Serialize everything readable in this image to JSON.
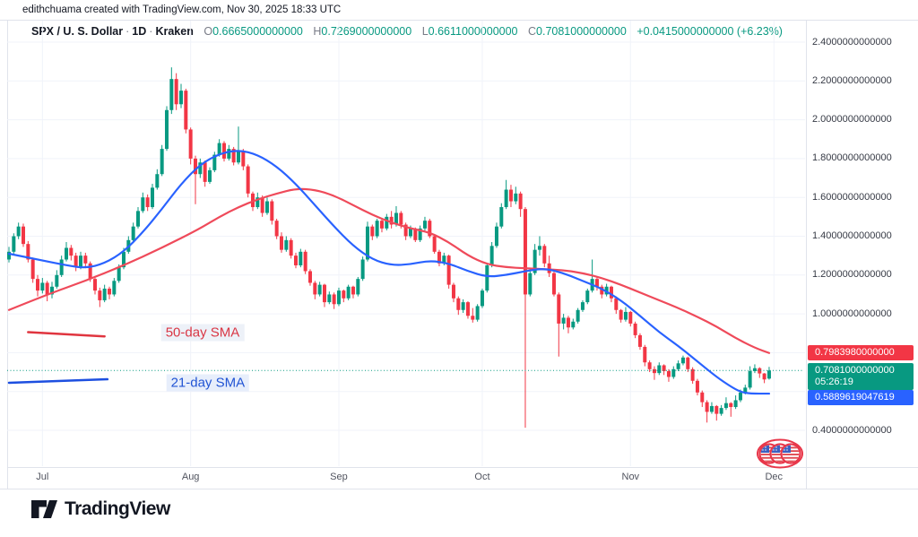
{
  "attribution": {
    "text": "edithchuama created with TradingView.com, Nov 30, 2025 18:33 UTC"
  },
  "header": {
    "title": "SPX / U. S. Dollar",
    "separator": "·",
    "timeframe": "1D",
    "exchange": "Kraken",
    "ohlc": [
      {
        "k": "O",
        "v": "0.6665000000000"
      },
      {
        "k": "H",
        "v": "0.7269000000000"
      },
      {
        "k": "L",
        "v": "0.6611000000000"
      },
      {
        "k": "C",
        "v": "0.7081000000000"
      }
    ],
    "change": "+0.0415000000000 (+6.23%)"
  },
  "price_tags": {
    "sma50": {
      "value": "0.7983980000000",
      "color": "#f23645",
      "price": 0.798398
    },
    "last": {
      "value": "0.7081000000000",
      "countdown": "05:26:19",
      "color": "#089981",
      "price": 0.7081
    },
    "sma21": {
      "value": "0.5889619047619",
      "color": "#2962ff",
      "price": 0.5889619047619
    }
  },
  "footer": {
    "brand": "TradingView"
  },
  "icons": {
    "annotation": "us-flag-circles-icon"
  },
  "chart_data": {
    "type": "candlestick",
    "title": "SPX / U.S. Dollar 1D Kraken",
    "ylim": [
      0.4,
      2.4
    ],
    "grid": true,
    "grid_prices": [
      0.4,
      0.6,
      0.8,
      1.0,
      1.2,
      1.4,
      1.6,
      1.8,
      2.0,
      2.2,
      2.4
    ],
    "price_ticks": [
      {
        "price": 2.4,
        "label": "2.4000000000000"
      },
      {
        "price": 2.2,
        "label": "2.2000000000000"
      },
      {
        "price": 2.0,
        "label": "2.0000000000000"
      },
      {
        "price": 1.8,
        "label": "1.8000000000000"
      },
      {
        "price": 1.6,
        "label": "1.6000000000000"
      },
      {
        "price": 1.4,
        "label": "1.4000000000000"
      },
      {
        "price": 1.2,
        "label": "1.2000000000000"
      },
      {
        "price": 1.0,
        "label": "1.0000000000000"
      },
      {
        "price": 0.4,
        "label": "0.4000000000000"
      }
    ],
    "months": [
      {
        "label": "Jul",
        "index": 7
      },
      {
        "label": "Aug",
        "index": 38
      },
      {
        "label": "Sep",
        "index": 69
      },
      {
        "label": "Oct",
        "index": 99
      },
      {
        "label": "Nov",
        "index": 130
      },
      {
        "label": "Dec",
        "index": 160
      }
    ],
    "colors": {
      "up": "#089981",
      "down": "#f23645"
    },
    "last_price_line": {
      "price": 0.7081,
      "color": "#089981",
      "style": "dotted"
    },
    "candles": [
      [
        1.28,
        1.345,
        1.265,
        1.32
      ],
      [
        1.32,
        1.415,
        1.31,
        1.4
      ],
      [
        1.4,
        1.47,
        1.385,
        1.45
      ],
      [
        1.45,
        1.465,
        1.345,
        1.36
      ],
      [
        1.36,
        1.375,
        1.265,
        1.28
      ],
      [
        1.28,
        1.29,
        1.16,
        1.18
      ],
      [
        1.18,
        1.2,
        1.09,
        1.12
      ],
      [
        1.12,
        1.185,
        1.105,
        1.16
      ],
      [
        1.16,
        1.17,
        1.065,
        1.1
      ],
      [
        1.1,
        1.165,
        1.08,
        1.14
      ],
      [
        1.14,
        1.225,
        1.13,
        1.2
      ],
      [
        1.2,
        1.3,
        1.19,
        1.28
      ],
      [
        1.28,
        1.37,
        1.27,
        1.34
      ],
      [
        1.34,
        1.355,
        1.275,
        1.3
      ],
      [
        1.3,
        1.315,
        1.22,
        1.24
      ],
      [
        1.24,
        1.32,
        1.23,
        1.3
      ],
      [
        1.3,
        1.315,
        1.235,
        1.26
      ],
      [
        1.26,
        1.27,
        1.165,
        1.18
      ],
      [
        1.18,
        1.195,
        1.1,
        1.12
      ],
      [
        1.12,
        1.135,
        1.035,
        1.07
      ],
      [
        1.07,
        1.15,
        1.06,
        1.13
      ],
      [
        1.13,
        1.14,
        1.075,
        1.1
      ],
      [
        1.1,
        1.185,
        1.09,
        1.17
      ],
      [
        1.17,
        1.255,
        1.16,
        1.24
      ],
      [
        1.24,
        1.34,
        1.23,
        1.32
      ],
      [
        1.32,
        1.4,
        1.31,
        1.38
      ],
      [
        1.38,
        1.47,
        1.37,
        1.45
      ],
      [
        1.45,
        1.55,
        1.44,
        1.53
      ],
      [
        1.53,
        1.625,
        1.52,
        1.6
      ],
      [
        1.6,
        1.615,
        1.53,
        1.55
      ],
      [
        1.55,
        1.67,
        1.54,
        1.65
      ],
      [
        1.65,
        1.745,
        1.64,
        1.72
      ],
      [
        1.72,
        1.87,
        1.71,
        1.85
      ],
      [
        1.85,
        2.07,
        1.84,
        2.05
      ],
      [
        2.05,
        2.27,
        2.03,
        2.21
      ],
      [
        2.21,
        2.24,
        2.05,
        2.08
      ],
      [
        2.08,
        2.185,
        2.06,
        2.15
      ],
      [
        2.15,
        2.16,
        1.93,
        1.95
      ],
      [
        1.95,
        1.96,
        1.77,
        1.8
      ],
      [
        1.8,
        1.815,
        1.565,
        1.72
      ],
      [
        1.72,
        1.8,
        1.7,
        1.78
      ],
      [
        1.78,
        1.79,
        1.655,
        1.68
      ],
      [
        1.68,
        1.755,
        1.67,
        1.74
      ],
      [
        1.74,
        1.835,
        1.73,
        1.82
      ],
      [
        1.82,
        1.9,
        1.81,
        1.88
      ],
      [
        1.88,
        1.89,
        1.785,
        1.8
      ],
      [
        1.8,
        1.87,
        1.79,
        1.85
      ],
      [
        1.85,
        1.86,
        1.765,
        1.78
      ],
      [
        1.78,
        1.965,
        1.77,
        1.84
      ],
      [
        1.84,
        1.85,
        1.74,
        1.76
      ],
      [
        1.76,
        1.77,
        1.6,
        1.62
      ],
      [
        1.62,
        1.63,
        1.53,
        1.55
      ],
      [
        1.55,
        1.625,
        1.54,
        1.6
      ],
      [
        1.6,
        1.61,
        1.5,
        1.52
      ],
      [
        1.52,
        1.6,
        1.51,
        1.58
      ],
      [
        1.58,
        1.59,
        1.46,
        1.48
      ],
      [
        1.48,
        1.49,
        1.385,
        1.4
      ],
      [
        1.4,
        1.42,
        1.315,
        1.33
      ],
      [
        1.33,
        1.4,
        1.32,
        1.38
      ],
      [
        1.38,
        1.39,
        1.285,
        1.3
      ],
      [
        1.3,
        1.315,
        1.235,
        1.25
      ],
      [
        1.25,
        1.335,
        1.24,
        1.32
      ],
      [
        1.32,
        1.33,
        1.205,
        1.22
      ],
      [
        1.22,
        1.23,
        1.145,
        1.16
      ],
      [
        1.16,
        1.17,
        1.075,
        1.1
      ],
      [
        1.1,
        1.165,
        1.09,
        1.15
      ],
      [
        1.15,
        1.155,
        1.035,
        1.06
      ],
      [
        1.06,
        1.115,
        1.05,
        1.1
      ],
      [
        1.1,
        1.11,
        1.025,
        1.05
      ],
      [
        1.05,
        1.135,
        1.04,
        1.12
      ],
      [
        1.12,
        1.125,
        1.06,
        1.08
      ],
      [
        1.08,
        1.15,
        1.07,
        1.14
      ],
      [
        1.14,
        1.145,
        1.08,
        1.1
      ],
      [
        1.1,
        1.19,
        1.09,
        1.18
      ],
      [
        1.18,
        1.295,
        1.17,
        1.28
      ],
      [
        1.28,
        1.475,
        1.27,
        1.45
      ],
      [
        1.45,
        1.46,
        1.38,
        1.4
      ],
      [
        1.4,
        1.49,
        1.39,
        1.48
      ],
      [
        1.48,
        1.495,
        1.42,
        1.44
      ],
      [
        1.44,
        1.515,
        1.43,
        1.5
      ],
      [
        1.5,
        1.53,
        1.44,
        1.46
      ],
      [
        1.46,
        1.555,
        1.45,
        1.52
      ],
      [
        1.52,
        1.53,
        1.44,
        1.46
      ],
      [
        1.46,
        1.47,
        1.38,
        1.4
      ],
      [
        1.4,
        1.455,
        1.39,
        1.44
      ],
      [
        1.44,
        1.445,
        1.37,
        1.38
      ],
      [
        1.38,
        1.455,
        1.37,
        1.44
      ],
      [
        1.44,
        1.5,
        1.43,
        1.48
      ],
      [
        1.48,
        1.49,
        1.39,
        1.4
      ],
      [
        1.4,
        1.41,
        1.31,
        1.32
      ],
      [
        1.32,
        1.33,
        1.245,
        1.26
      ],
      [
        1.26,
        1.315,
        1.25,
        1.3
      ],
      [
        1.3,
        1.305,
        1.13,
        1.15
      ],
      [
        1.15,
        1.16,
        1.06,
        1.08
      ],
      [
        1.08,
        1.09,
        0.995,
        1.02
      ],
      [
        1.02,
        1.075,
        1.005,
        1.06
      ],
      [
        1.06,
        1.065,
        0.975,
        0.99
      ],
      [
        0.99,
        1.03,
        0.955,
        0.97
      ],
      [
        0.97,
        1.05,
        0.96,
        1.04
      ],
      [
        1.04,
        1.13,
        1.03,
        1.12
      ],
      [
        1.12,
        1.26,
        1.11,
        1.25
      ],
      [
        1.25,
        1.37,
        1.24,
        1.35
      ],
      [
        1.35,
        1.47,
        1.34,
        1.45
      ],
      [
        1.45,
        1.57,
        1.44,
        1.55
      ],
      [
        1.55,
        1.69,
        1.54,
        1.64
      ],
      [
        1.64,
        1.665,
        1.55,
        1.58
      ],
      [
        1.58,
        1.655,
        1.565,
        1.62
      ],
      [
        1.62,
        1.63,
        1.5,
        1.54
      ],
      [
        1.54,
        1.55,
        0.413,
        1.1
      ],
      [
        1.1,
        1.23,
        1.09,
        1.21
      ],
      [
        1.21,
        1.36,
        1.2,
        1.33
      ],
      [
        1.33,
        1.4,
        1.3,
        1.35
      ],
      [
        1.35,
        1.36,
        1.24,
        1.26
      ],
      [
        1.26,
        1.3,
        1.19,
        1.21
      ],
      [
        1.21,
        1.22,
        1.09,
        1.1
      ],
      [
        1.1,
        1.11,
        0.78,
        0.95
      ],
      [
        0.95,
        1.0,
        0.92,
        0.98
      ],
      [
        0.98,
        0.99,
        0.9,
        0.93
      ],
      [
        0.93,
        0.975,
        0.92,
        0.96
      ],
      [
        0.96,
        1.03,
        0.95,
        1.02
      ],
      [
        1.02,
        1.07,
        1.01,
        1.06
      ],
      [
        1.06,
        1.13,
        1.05,
        1.12
      ],
      [
        1.12,
        1.28,
        1.11,
        1.18
      ],
      [
        1.18,
        1.19,
        1.12,
        1.14
      ],
      [
        1.14,
        1.15,
        1.08,
        1.1
      ],
      [
        1.1,
        1.155,
        1.09,
        1.14
      ],
      [
        1.14,
        1.145,
        1.06,
        1.08
      ],
      [
        1.08,
        1.09,
        1.0,
        1.02
      ],
      [
        1.02,
        1.025,
        0.955,
        0.97
      ],
      [
        0.97,
        1.035,
        0.96,
        1.01
      ],
      [
        1.01,
        1.015,
        0.935,
        0.95
      ],
      [
        0.95,
        0.96,
        0.875,
        0.89
      ],
      [
        0.89,
        0.9,
        0.815,
        0.83
      ],
      [
        0.83,
        0.84,
        0.73,
        0.75
      ],
      [
        0.75,
        0.76,
        0.7,
        0.715
      ],
      [
        0.715,
        0.73,
        0.66,
        0.695
      ],
      [
        0.695,
        0.75,
        0.685,
        0.735
      ],
      [
        0.735,
        0.74,
        0.685,
        0.705
      ],
      [
        0.705,
        0.715,
        0.65,
        0.675
      ],
      [
        0.675,
        0.73,
        0.665,
        0.715
      ],
      [
        0.715,
        0.76,
        0.705,
        0.745
      ],
      [
        0.745,
        0.785,
        0.735,
        0.775
      ],
      [
        0.775,
        0.78,
        0.7,
        0.715
      ],
      [
        0.715,
        0.725,
        0.64,
        0.655
      ],
      [
        0.655,
        0.665,
        0.58,
        0.595
      ],
      [
        0.595,
        0.605,
        0.52,
        0.545
      ],
      [
        0.545,
        0.555,
        0.44,
        0.495
      ],
      [
        0.495,
        0.545,
        0.485,
        0.525
      ],
      [
        0.525,
        0.53,
        0.45,
        0.485
      ],
      [
        0.485,
        0.53,
        0.475,
        0.515
      ],
      [
        0.515,
        0.57,
        0.505,
        0.54
      ],
      [
        0.54,
        0.545,
        0.47,
        0.52
      ],
      [
        0.52,
        0.58,
        0.51,
        0.555
      ],
      [
        0.555,
        0.61,
        0.545,
        0.595
      ],
      [
        0.595,
        0.635,
        0.585,
        0.62
      ],
      [
        0.62,
        0.73,
        0.61,
        0.705
      ],
      [
        0.705,
        0.74,
        0.695,
        0.72
      ],
      [
        0.72,
        0.725,
        0.67,
        0.693
      ],
      [
        0.693,
        0.695,
        0.643,
        0.662
      ],
      [
        0.6665,
        0.7269,
        0.6611,
        0.7081
      ]
    ],
    "series": [
      {
        "name": "21-day SMA",
        "color": "#2962ff",
        "last_value": 0.5889619047619,
        "points": [
          [
            0,
            1.31
          ],
          [
            6,
            1.28
          ],
          [
            12,
            1.25
          ],
          [
            16,
            1.235
          ],
          [
            20,
            1.26
          ],
          [
            24,
            1.32
          ],
          [
            28,
            1.42
          ],
          [
            32,
            1.54
          ],
          [
            36,
            1.67
          ],
          [
            40,
            1.77
          ],
          [
            44,
            1.825
          ],
          [
            48,
            1.845
          ],
          [
            52,
            1.82
          ],
          [
            56,
            1.76
          ],
          [
            60,
            1.67
          ],
          [
            64,
            1.56
          ],
          [
            68,
            1.45
          ],
          [
            72,
            1.35
          ],
          [
            76,
            1.28
          ],
          [
            80,
            1.25
          ],
          [
            84,
            1.255
          ],
          [
            88,
            1.275
          ],
          [
            92,
            1.26
          ],
          [
            96,
            1.22
          ],
          [
            100,
            1.19
          ],
          [
            104,
            1.2
          ],
          [
            108,
            1.22
          ],
          [
            112,
            1.235
          ],
          [
            116,
            1.21
          ],
          [
            120,
            1.17
          ],
          [
            124,
            1.13
          ],
          [
            128,
            1.07
          ],
          [
            132,
            0.99
          ],
          [
            136,
            0.905
          ],
          [
            140,
            0.835
          ],
          [
            144,
            0.755
          ],
          [
            148,
            0.675
          ],
          [
            151,
            0.625
          ],
          [
            153,
            0.598
          ],
          [
            155,
            0.589
          ],
          [
            159,
            0.589
          ]
        ]
      },
      {
        "name": "50-day SMA",
        "color": "#ef4a5a",
        "last_value": 0.798398,
        "points": [
          [
            0,
            1.02
          ],
          [
            8,
            1.1
          ],
          [
            16,
            1.17
          ],
          [
            24,
            1.25
          ],
          [
            32,
            1.34
          ],
          [
            40,
            1.44
          ],
          [
            44,
            1.5
          ],
          [
            48,
            1.55
          ],
          [
            52,
            1.59
          ],
          [
            56,
            1.62
          ],
          [
            60,
            1.645
          ],
          [
            64,
            1.64
          ],
          [
            68,
            1.61
          ],
          [
            72,
            1.56
          ],
          [
            76,
            1.51
          ],
          [
            80,
            1.47
          ],
          [
            84,
            1.44
          ],
          [
            88,
            1.42
          ],
          [
            92,
            1.37
          ],
          [
            96,
            1.3
          ],
          [
            100,
            1.255
          ],
          [
            104,
            1.24
          ],
          [
            108,
            1.235
          ],
          [
            112,
            1.23
          ],
          [
            116,
            1.225
          ],
          [
            120,
            1.21
          ],
          [
            124,
            1.185
          ],
          [
            128,
            1.15
          ],
          [
            132,
            1.11
          ],
          [
            136,
            1.07
          ],
          [
            140,
            1.03
          ],
          [
            144,
            0.985
          ],
          [
            148,
            0.935
          ],
          [
            152,
            0.875
          ],
          [
            156,
            0.825
          ],
          [
            159,
            0.7984
          ]
        ]
      }
    ],
    "trendlines": [
      {
        "label": "50-day SMA",
        "color": "#e0353f",
        "x1_index": 4,
        "price1": 0.906,
        "x2_index": 20,
        "price2": 0.884,
        "label_index": 40.5,
        "label_price": 0.902,
        "text_color": "#d93644",
        "label_bg": "#edf1f8"
      },
      {
        "label": "21-day SMA",
        "color": "#1d4fe0",
        "x1_index": 0,
        "price1": 0.645,
        "x2_index": 20.6,
        "price2": 0.663,
        "label_index": 41.6,
        "label_price": 0.647,
        "text_color": "#2154d4",
        "label_bg": "#e7eefb"
      }
    ]
  }
}
